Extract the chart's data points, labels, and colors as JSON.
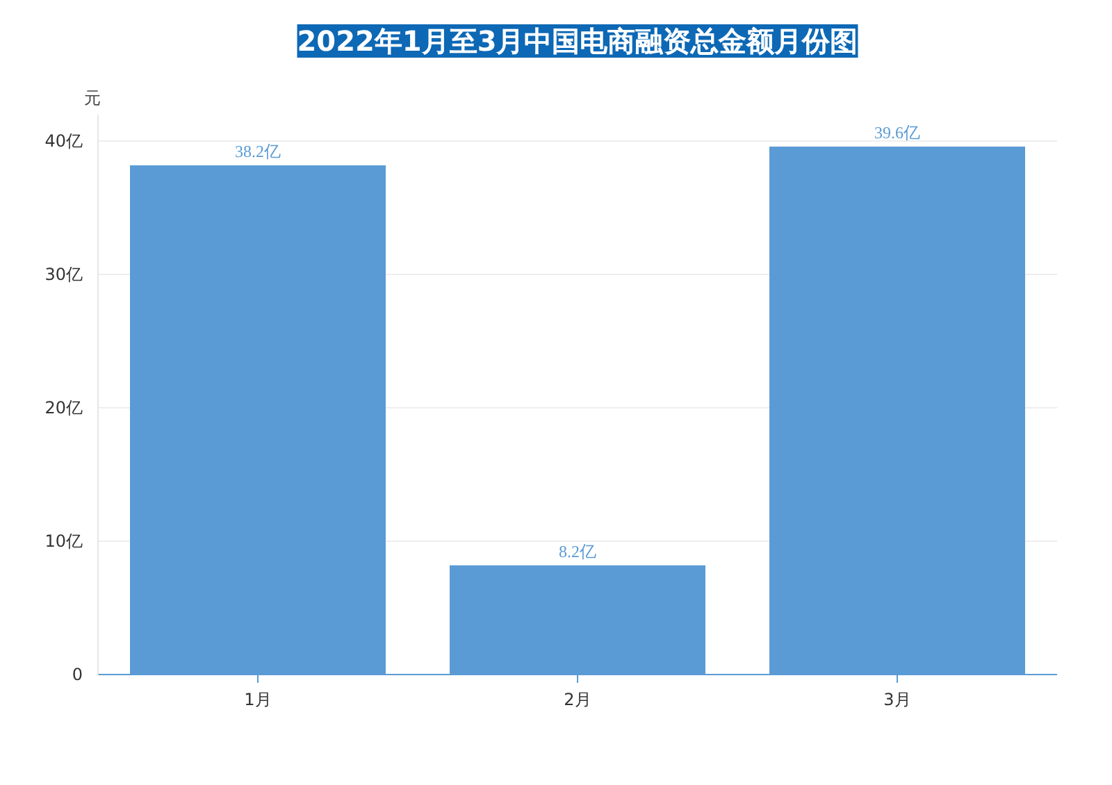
{
  "chart_data": {
    "type": "bar",
    "title": "2022年1月至3月中国电商融资总金额月份图",
    "ylabel": "元",
    "categories": [
      "1月",
      "2月",
      "3月"
    ],
    "values": [
      38.2,
      8.2,
      39.6
    ],
    "value_labels": [
      "38.2亿",
      "8.2亿",
      "39.6亿"
    ],
    "color": "#5b9bd5",
    "ylim": [
      0,
      42
    ],
    "yticks": [
      0,
      {
        "value": 10,
        "label": "10亿"
      },
      {
        "value": 20,
        "label": "20亿"
      },
      {
        "value": 30,
        "label": "30亿"
      },
      {
        "value": 40,
        "label": "40亿"
      }
    ],
    "grid": "y"
  }
}
